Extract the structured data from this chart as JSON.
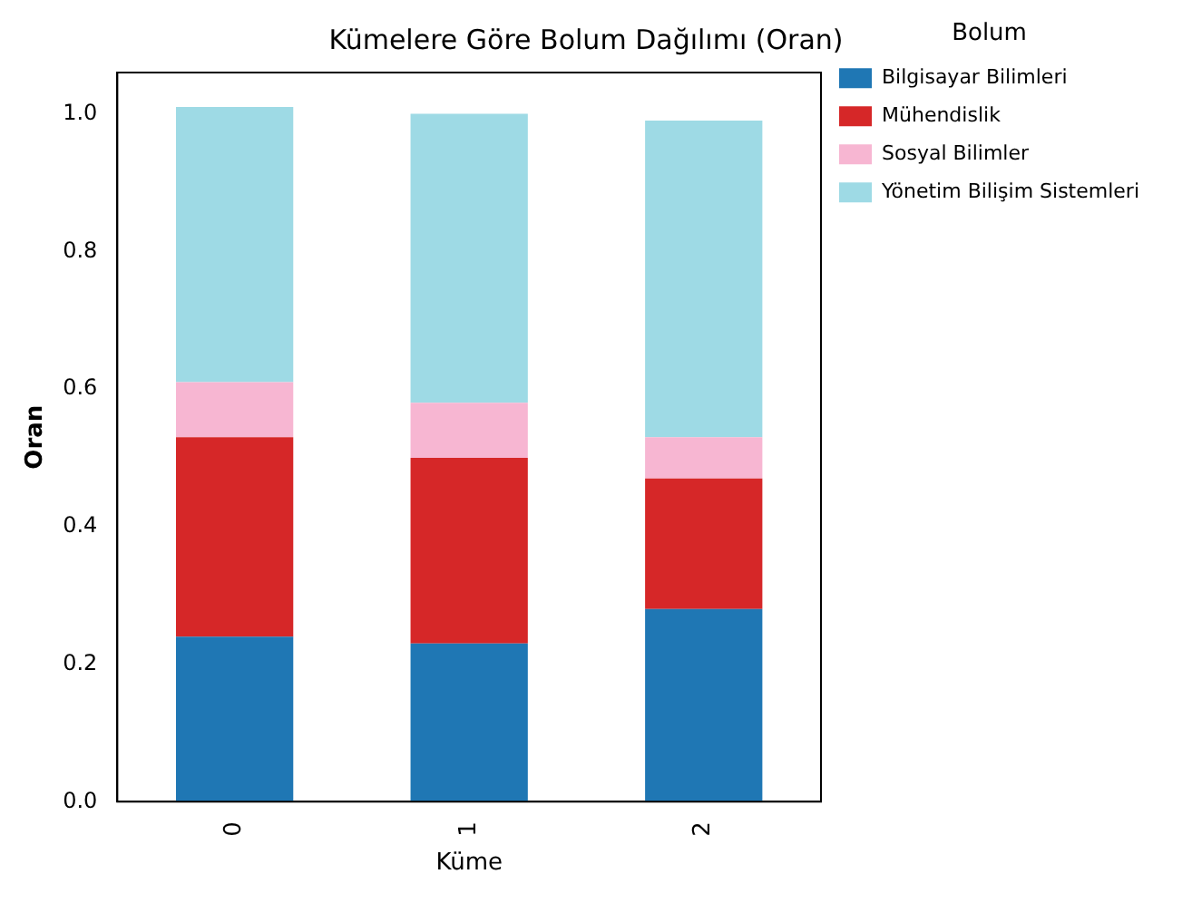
{
  "chart_data": {
    "type": "bar",
    "title": "Kümelere Göre Bolum Dağılımı (Oran)",
    "xlabel": "Küme",
    "ylabel": "Oran",
    "legend_title": "Bolum",
    "categories": [
      "0",
      "1",
      "2"
    ],
    "stacked": true,
    "series": [
      {
        "name": "Bilgisayar Bilimleri",
        "color": "#1f77b4",
        "values": [
          0.24,
          0.23,
          0.28
        ]
      },
      {
        "name": "Mühendislik",
        "color": "#d62728",
        "values": [
          0.29,
          0.27,
          0.19
        ]
      },
      {
        "name": "Sosyal Bilimler",
        "color": "#f7b6d2",
        "values": [
          0.08,
          0.08,
          0.06
        ]
      },
      {
        "name": "Yönetim Bilişim Sistemleri",
        "color": "#9edae5",
        "values": [
          0.4,
          0.42,
          0.46
        ]
      }
    ],
    "ylim": [
      0,
      1.06
    ],
    "yticks": [
      {
        "value": 0,
        "label": "0.0"
      },
      0.2,
      0.4,
      0.6,
      0.8,
      {
        "value": 1,
        "label": "1.0"
      }
    ],
    "grid": false,
    "legend": "top right"
  }
}
